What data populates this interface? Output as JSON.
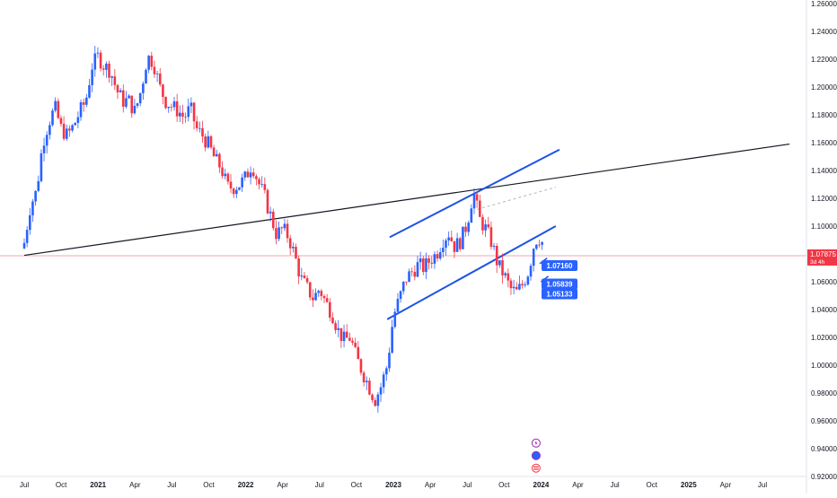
{
  "colors": {
    "up": "#2962ff",
    "down": "#f23645",
    "trendline": "#1e53e5",
    "resistance": "#131722",
    "current_price_line": "#f7a7ad",
    "dashed_projection": "#b2b5be",
    "axis_text": "#131722",
    "badge": "#2962ff"
  },
  "chart_data": {
    "type": "candlestick",
    "timeframe_note": "3d 4h",
    "y_axis": {
      "min": 0.92,
      "max": 1.26,
      "step": 0.02,
      "tick_labels": [
        "1.26000",
        "1.24000",
        "1.22000",
        "1.20000",
        "1.18000",
        "1.16000",
        "1.14000",
        "1.12000",
        "1.10000",
        "1.08000",
        "1.06000",
        "1.04000",
        "1.02000",
        "1.00000",
        "0.98000",
        "0.96000",
        "0.94000",
        "0.92000"
      ]
    },
    "x_axis": {
      "tick_labels": [
        "Jul",
        "Oct",
        "2021",
        "Apr",
        "Jul",
        "Oct",
        "2022",
        "Apr",
        "Jul",
        "Oct",
        "2023",
        "Apr",
        "Jul",
        "Oct",
        "2024",
        "Apr",
        "Jul",
        "Oct",
        "2025",
        "Apr",
        "Jul"
      ],
      "tick_months": [
        0,
        3,
        6,
        9,
        12,
        15,
        18,
        21,
        24,
        27,
        30,
        33,
        36,
        39,
        42,
        45,
        48,
        51,
        54,
        57,
        60
      ]
    },
    "current_price": {
      "value": 1.07875,
      "label": "1.07875",
      "sublabel": "3d 4h"
    },
    "level_labels": [
      {
        "value": 1.0716,
        "label": "1.07160"
      },
      {
        "value": 1.05839,
        "label": "1.05839"
      },
      {
        "value": 1.05133,
        "label": "1.05133"
      }
    ],
    "close_path": [
      [
        0,
        1.088
      ],
      [
        0.5,
        1.115
      ],
      [
        1,
        1.125
      ],
      [
        1.5,
        1.16
      ],
      [
        2,
        1.175
      ],
      [
        2.5,
        1.185
      ],
      [
        3,
        1.17
      ],
      [
        3.5,
        1.165
      ],
      [
        4,
        1.172
      ],
      [
        4.5,
        1.182
      ],
      [
        5,
        1.19
      ],
      [
        5.5,
        1.215
      ],
      [
        6,
        1.222
      ],
      [
        6.5,
        1.215
      ],
      [
        7,
        1.212
      ],
      [
        7.5,
        1.198
      ],
      [
        8,
        1.19
      ],
      [
        8.5,
        1.19
      ],
      [
        9,
        1.182
      ],
      [
        9.5,
        1.198
      ],
      [
        10,
        1.222
      ],
      [
        10.5,
        1.218
      ],
      [
        11,
        1.2
      ],
      [
        11.5,
        1.19
      ],
      [
        12,
        1.186
      ],
      [
        12.5,
        1.183
      ],
      [
        13,
        1.178
      ],
      [
        13.5,
        1.185
      ],
      [
        14,
        1.17
      ],
      [
        14.5,
        1.165
      ],
      [
        15,
        1.158
      ],
      [
        15.5,
        1.148
      ],
      [
        16,
        1.142
      ],
      [
        16.5,
        1.128
      ],
      [
        17,
        1.128
      ],
      [
        17.5,
        1.13
      ],
      [
        18,
        1.135
      ],
      [
        18.5,
        1.145
      ],
      [
        19,
        1.132
      ],
      [
        19.5,
        1.122
      ],
      [
        20,
        1.108
      ],
      [
        20.5,
        1.094
      ],
      [
        21,
        1.098
      ],
      [
        21.5,
        1.092
      ],
      [
        22,
        1.078
      ],
      [
        22.5,
        1.062
      ],
      [
        23,
        1.055
      ],
      [
        23.5,
        1.048
      ],
      [
        24,
        1.055
      ],
      [
        24.5,
        1.045
      ],
      [
        25,
        1.038
      ],
      [
        25.5,
        1.025
      ],
      [
        26,
        1.018
      ],
      [
        26.5,
        1.02
      ],
      [
        27,
        1.005
      ],
      [
        27.5,
        0.995
      ],
      [
        28,
        0.985
      ],
      [
        28.5,
        0.975
      ],
      [
        29,
        0.985
      ],
      [
        29.5,
        1.0
      ],
      [
        30,
        1.035
      ],
      [
        30.5,
        1.048
      ],
      [
        31,
        1.062
      ],
      [
        31.5,
        1.067
      ],
      [
        32,
        1.072
      ],
      [
        32.5,
        1.07
      ],
      [
        33,
        1.076
      ],
      [
        33.5,
        1.08
      ],
      [
        34,
        1.09
      ],
      [
        34.5,
        1.095
      ],
      [
        35,
        1.085
      ],
      [
        35.5,
        1.09
      ],
      [
        36,
        1.102
      ],
      [
        36.5,
        1.125
      ],
      [
        37,
        1.105
      ],
      [
        37.5,
        1.098
      ],
      [
        38,
        1.088
      ],
      [
        38.5,
        1.072
      ],
      [
        39,
        1.065
      ],
      [
        39.5,
        1.055
      ],
      [
        40,
        1.052
      ],
      [
        40.5,
        1.058
      ],
      [
        41,
        1.068
      ],
      [
        41.5,
        1.09
      ],
      [
        42,
        1.092
      ],
      [
        42.3,
        1.08
      ]
    ],
    "drawings": {
      "resistance_line": {
        "start": [
          0,
          1.079
        ],
        "end": [
          62.2,
          1.159
        ]
      },
      "channel_upper": {
        "start": [
          29.7,
          1.092
        ],
        "end": [
          43.5,
          1.155
        ]
      },
      "channel_lower": {
        "start": [
          29.5,
          1.033
        ],
        "end": [
          43.2,
          1.1
        ]
      },
      "dashed_projection": {
        "start": [
          36.8,
          1.112
        ],
        "end": [
          43.2,
          1.128
        ]
      },
      "minor_arrows": [
        {
          "start": [
            41.9,
            1.073
          ],
          "end": [
            42.5,
            1.077
          ]
        },
        {
          "start": [
            42.0,
            1.06
          ],
          "end": [
            42.6,
            1.064
          ]
        },
        {
          "start": [
            42.1,
            1.052
          ],
          "end": [
            42.7,
            1.056
          ]
        }
      ],
      "event_icons": [
        {
          "month": 41.6,
          "value": 0.944,
          "name": "lightning"
        },
        {
          "month": 41.6,
          "value": 0.935,
          "name": "blue-dot"
        },
        {
          "month": 41.6,
          "value": 0.926,
          "name": "flag"
        }
      ]
    }
  }
}
